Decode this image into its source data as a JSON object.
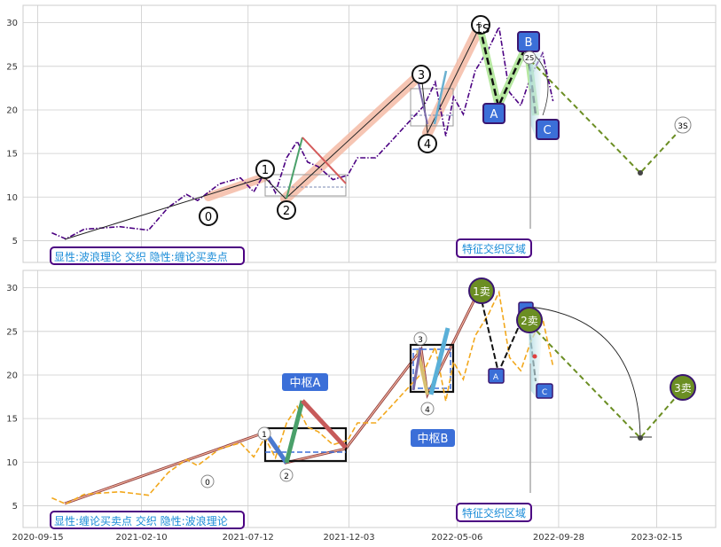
{
  "chart_data": [
    {
      "type": "line",
      "panel": "top",
      "ylim": [
        2.5,
        32
      ],
      "yticks": [
        5,
        10,
        15,
        20,
        25,
        30
      ],
      "grid": true,
      "series": [
        {
          "style": "price-dashdot-purple",
          "color": "#4B0082",
          "x": [
            "2020-10-05",
            "2020-10-25",
            "2020-11-20",
            "2021-01-10",
            "2021-02-20",
            "2021-03-20",
            "2021-04-15",
            "2021-05-01",
            "2021-06-01",
            "2021-07-01",
            "2021-07-20",
            "2021-08-05",
            "2021-08-20",
            "2021-09-05",
            "2021-09-20",
            "2021-10-05",
            "2021-10-20",
            "2021-11-10",
            "2021-12-01",
            "2021-12-15",
            "2022-01-10",
            "2022-02-01",
            "2022-02-25",
            "2022-03-20",
            "2022-04-05",
            "2022-04-20",
            "2022-05-01",
            "2022-05-15",
            "2022-06-01",
            "2022-06-20",
            "2022-07-05",
            "2022-07-20",
            "2022-08-05",
            "2022-08-20",
            "2022-09-05",
            "2022-09-20"
          ],
          "y": [
            5.9,
            5.2,
            6.3,
            6.6,
            6.2,
            8.8,
            10.3,
            9.6,
            11.5,
            12.2,
            10.6,
            12.8,
            10.5,
            14.5,
            16.4,
            14.0,
            13.5,
            12.0,
            12.5,
            14.5,
            14.5,
            16.4,
            18.5,
            20.5,
            23.2,
            17.0,
            21.5,
            19.5,
            24.5,
            27.0,
            29.5,
            22.0,
            20.5,
            24.0,
            26.5,
            21.0
          ]
        }
      ],
      "wave_labels": [
        {
          "text": "0",
          "x": "2021-06-01",
          "y": 8.0
        },
        {
          "text": "1",
          "x": "2021-08-01",
          "y": 13.3
        },
        {
          "text": "2",
          "x": "2021-09-05",
          "y": 8.8
        },
        {
          "text": "3",
          "x": "2022-04-05",
          "y": 24.2
        },
        {
          "text": "4",
          "x": "2022-04-20",
          "y": 16.2
        },
        {
          "text": "5",
          "x": "2022-06-25",
          "y": 30.0
        },
        {
          "text": "1S",
          "x": "2022-06-28",
          "y": 30.0
        },
        {
          "text": "A",
          "x": "2022-07-25",
          "y": 20.0
        },
        {
          "text": "B",
          "x": "2022-08-25",
          "y": 28.0
        },
        {
          "text": "C",
          "x": "2022-09-25",
          "y": 17.0
        },
        {
          "text": "2S",
          "x": "2022-08-30",
          "y": 26.4
        },
        {
          "text": "3S",
          "x": "2023-04-05",
          "y": 18.6
        }
      ],
      "annotations": [
        "显性:波浪理论 交织 隐性:缠论买卖点",
        "特征交织区域"
      ]
    },
    {
      "type": "line",
      "panel": "bottom",
      "ylim": [
        2.5,
        32
      ],
      "yticks": [
        5,
        10,
        15,
        20,
        25,
        30
      ],
      "grid": true,
      "xticks": [
        "2020-09-15",
        "2021-02-10",
        "2021-07-12",
        "2021-12-03",
        "2022-05-06",
        "2022-09-28",
        "2023-02-15"
      ],
      "series": [
        {
          "style": "price-dashed-orange",
          "color": "#F2A81D",
          "x": [
            "2020-10-05",
            "2020-10-25",
            "2020-11-20",
            "2021-01-10",
            "2021-02-20",
            "2021-03-20",
            "2021-04-15",
            "2021-05-01",
            "2021-06-01",
            "2021-07-01",
            "2021-07-20",
            "2021-08-05",
            "2021-08-20",
            "2021-09-05",
            "2021-09-20",
            "2021-10-05",
            "2021-10-20",
            "2021-11-10",
            "2021-12-01",
            "2021-12-15",
            "2022-01-10",
            "2022-02-01",
            "2022-02-25",
            "2022-03-20",
            "2022-04-05",
            "2022-04-20",
            "2022-05-01",
            "2022-05-15",
            "2022-06-01",
            "2022-06-20",
            "2022-07-05",
            "2022-07-20",
            "2022-08-05",
            "2022-08-20",
            "2022-09-05",
            "2022-09-20"
          ],
          "y": [
            5.9,
            5.2,
            6.3,
            6.6,
            6.2,
            8.8,
            10.3,
            9.6,
            11.5,
            12.2,
            10.6,
            12.8,
            10.5,
            14.5,
            16.4,
            14.0,
            13.5,
            12.0,
            12.5,
            14.5,
            14.5,
            16.4,
            18.5,
            20.5,
            23.2,
            17.0,
            21.5,
            19.5,
            24.5,
            27.0,
            29.5,
            22.0,
            20.5,
            24.0,
            26.5,
            21.0
          ]
        }
      ],
      "pivot_labels": [
        "中枢A",
        "中枢B"
      ],
      "wave_labels": [
        {
          "text": "0",
          "x": "2021-06-01",
          "y": 8.0
        },
        {
          "text": "1",
          "x": "2021-08-01",
          "y": 13.3
        },
        {
          "text": "2",
          "x": "2021-09-05",
          "y": 8.5
        },
        {
          "text": "3",
          "x": "2022-04-05",
          "y": 24.2
        },
        {
          "text": "4",
          "x": "2022-04-20",
          "y": 16.2
        },
        {
          "text": "A",
          "x": "2022-07-25",
          "y": 20.0
        },
        {
          "text": "C",
          "x": "2022-09-25",
          "y": 18.2
        }
      ],
      "signals": [
        "1卖",
        "2卖",
        "3卖"
      ],
      "annotations": [
        "显性:缠论买卖点 交织 隐性:波浪理论",
        "特征交织区域"
      ]
    }
  ]
}
